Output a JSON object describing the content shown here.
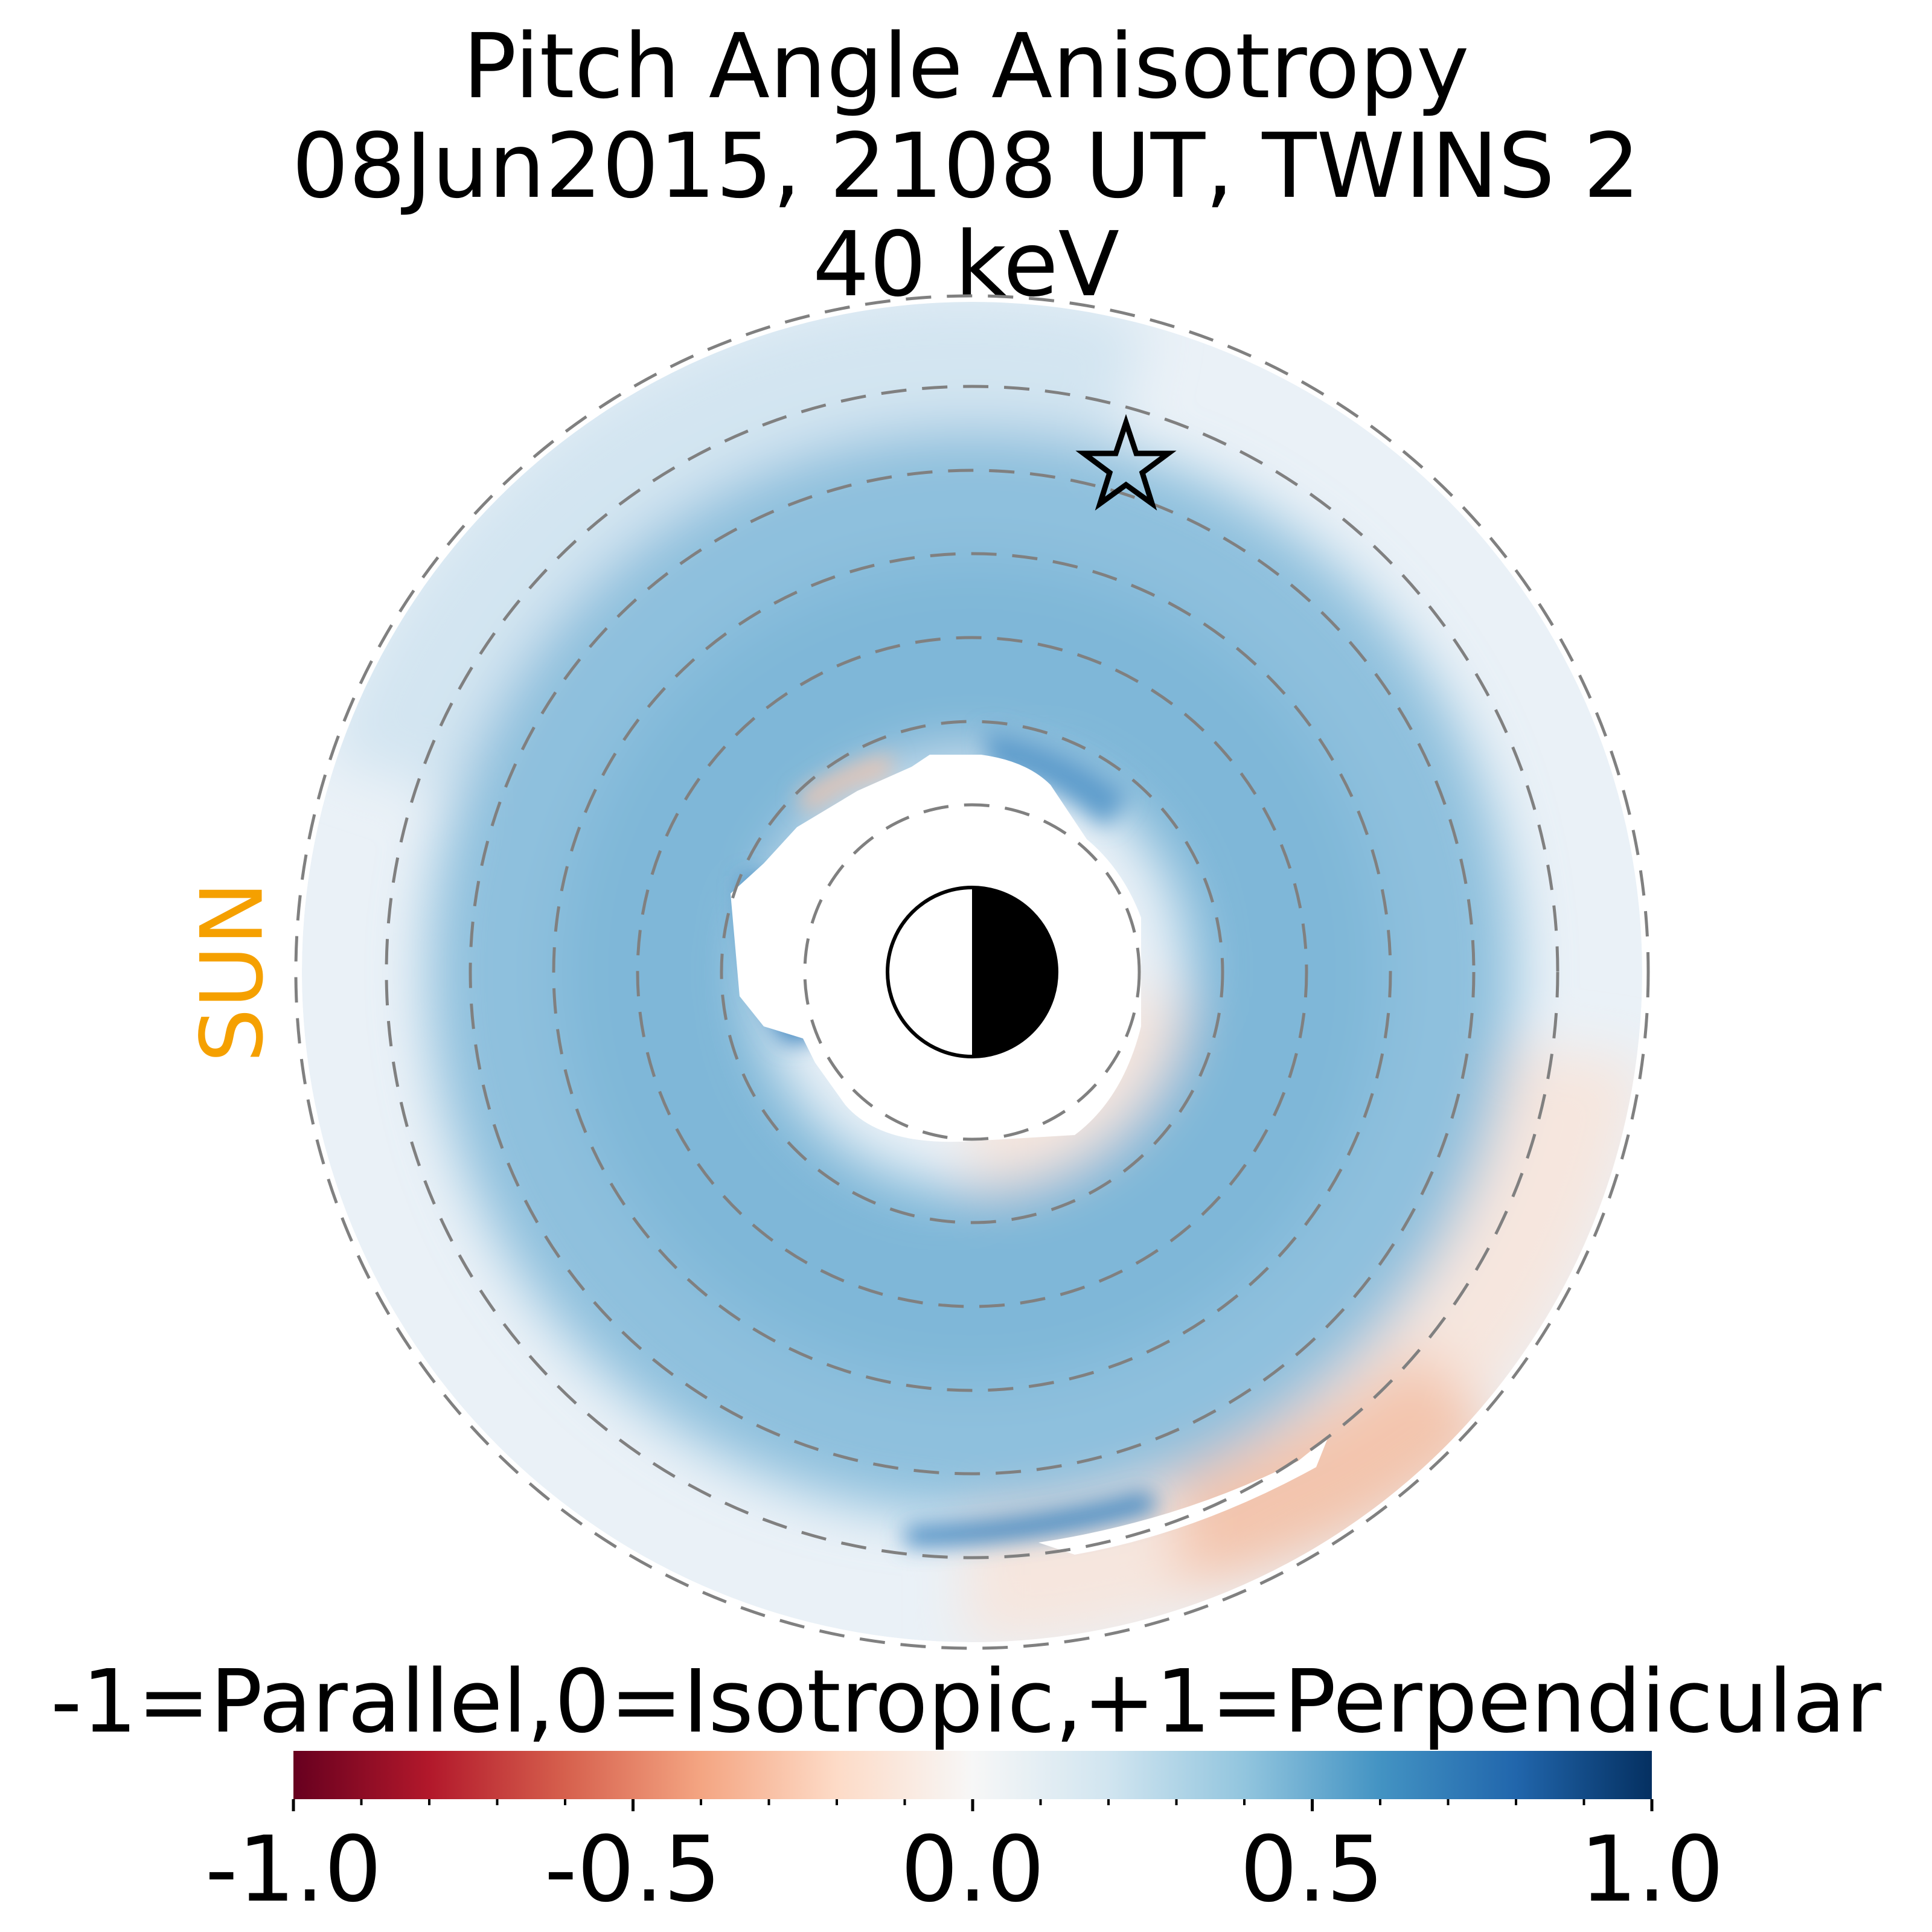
{
  "title": {
    "line1": "Pitch Angle Anisotropy",
    "line2": "08Jun2015, 2108 UT,  TWINS 2",
    "line3": "40 keV"
  },
  "sun_label": "SUN",
  "colorbar": {
    "label": "-1=Parallel,0=Isotropic,+1=Perpendicular",
    "ticks": [
      "-1.0",
      "-0.5",
      "0.0",
      "0.5",
      "1.0"
    ],
    "tick_values": [
      -1.0,
      -0.5,
      0.0,
      0.5,
      1.0
    ],
    "range": [
      -1.0,
      1.0
    ],
    "colormap": "RdBu",
    "colors": [
      "#67001f",
      "#b2182b",
      "#d6604d",
      "#f4a582",
      "#fddbc7",
      "#f7f7f7",
      "#d1e5f0",
      "#92c5de",
      "#4393c3",
      "#2166ac",
      "#053061"
    ]
  },
  "chart_data": {
    "type": "heatmap",
    "projection": "polar equatorial map, Sun to the left",
    "value_range": [
      -1.0,
      1.0
    ],
    "dashed_ring_radii_RE": [
      2,
      3,
      4,
      5,
      6,
      7,
      8
    ],
    "description_regions": [
      {
        "region": "inner ring (~3-5 RE)",
        "value": 0.45
      },
      {
        "region": "dawn/night inner edge",
        "value": 0.6
      },
      {
        "region": "outer ring (~6-8 RE) day side",
        "value": 0.2
      },
      {
        "region": "outer ring dusk (lower right)",
        "value": -0.15
      },
      {
        "region": "inner edge dusk patch",
        "value": -0.35
      }
    ],
    "earth_marker": "half-dark disk, night side right",
    "star_marker": "upper right at ~6.5 RE"
  }
}
